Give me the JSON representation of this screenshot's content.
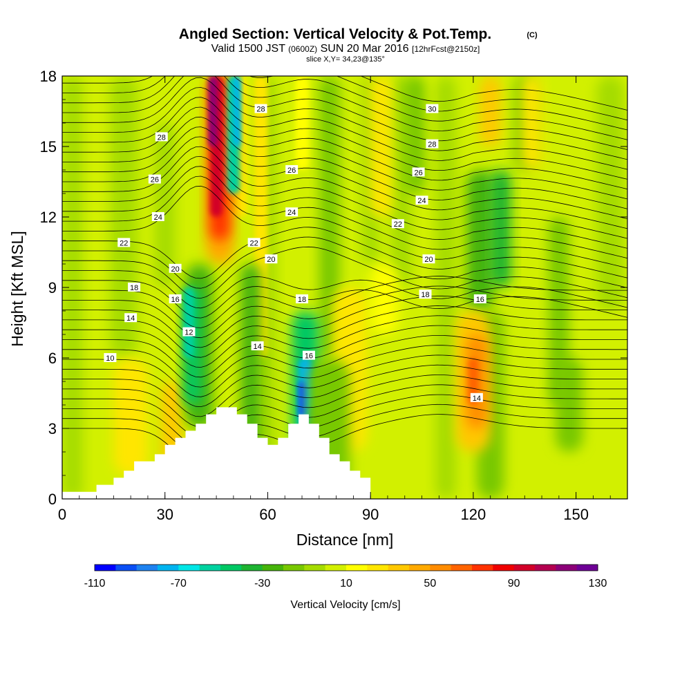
{
  "chart_data": {
    "type": "heatmap",
    "title": "Angled Section: Vertical Velocity & Pot.Temp.",
    "title_mark": "(C)",
    "subtitle_parts": [
      "Valid 1500 JST",
      "(0600Z)",
      "SUN 20 Mar 2016",
      "[12hrFcst@2150z]"
    ],
    "subtitle2": "slice X,Y= 34,23@135°",
    "xlabel": "Distance [nm]",
    "ylabel": "Height [Kft MSL]",
    "xlim": [
      0,
      165
    ],
    "ylim": [
      0,
      18
    ],
    "x_ticks": [
      0,
      30,
      60,
      90,
      120,
      150
    ],
    "y_ticks": [
      0,
      3,
      6,
      9,
      12,
      15,
      18
    ],
    "colorbar": {
      "label": "Vertical Velocity [cm/s]",
      "min": -110,
      "max": 130,
      "step": 10,
      "tick_values": [
        -110,
        -70,
        -30,
        10,
        50,
        90,
        130
      ],
      "colors": [
        "#0000ff",
        "#0a4ff5",
        "#1e82f0",
        "#00b4f0",
        "#00e6e6",
        "#00d2a0",
        "#00c864",
        "#1eb432",
        "#46b40a",
        "#78c800",
        "#a5dc00",
        "#d2f000",
        "#ffff00",
        "#ffe600",
        "#ffc800",
        "#ffaa00",
        "#ff8c00",
        "#ff6400",
        "#ff3200",
        "#f00000",
        "#d20028",
        "#b40050",
        "#8c0078",
        "#6e0096"
      ]
    },
    "vertical_velocity_features": [
      {
        "label": "updraft",
        "x": 45,
        "y_bottom": 10,
        "y_top": 18,
        "value": 110
      },
      {
        "label": "downdraft",
        "x": 50,
        "y_bottom": 13,
        "y_top": 18,
        "value": -70
      },
      {
        "label": "downdraft",
        "x": 38,
        "y_bottom": 4,
        "y_top": 10,
        "value": -40
      },
      {
        "label": "downdraft",
        "x": 71,
        "y_bottom": 2,
        "y_top": 8,
        "value": -90
      },
      {
        "label": "updraft",
        "x": 120,
        "y_bottom": 2,
        "y_top": 8,
        "value": 50
      },
      {
        "label": "downdraft",
        "x": 128,
        "y_bottom": 9,
        "y_top": 14,
        "value": -30
      }
    ],
    "terrain": [
      [
        0,
        0
      ],
      [
        0,
        0.3
      ],
      [
        10,
        0.3
      ],
      [
        10,
        0.6
      ],
      [
        15,
        0.6
      ],
      [
        15,
        0.9
      ],
      [
        18,
        0.9
      ],
      [
        18,
        1.2
      ],
      [
        21,
        1.2
      ],
      [
        21,
        1.6
      ],
      [
        27,
        1.6
      ],
      [
        27,
        1.9
      ],
      [
        30,
        1.9
      ],
      [
        30,
        2.3
      ],
      [
        33,
        2.3
      ],
      [
        33,
        2.6
      ],
      [
        36,
        2.6
      ],
      [
        36,
        2.9
      ],
      [
        39,
        2.9
      ],
      [
        39,
        3.2
      ],
      [
        42,
        3.2
      ],
      [
        42,
        3.6
      ],
      [
        45,
        3.6
      ],
      [
        45,
        3.9
      ],
      [
        51,
        3.9
      ],
      [
        51,
        3.6
      ],
      [
        54,
        3.6
      ],
      [
        54,
        3.2
      ],
      [
        57,
        3.2
      ],
      [
        57,
        2.6
      ],
      [
        60,
        2.6
      ],
      [
        60,
        2.3
      ],
      [
        63,
        2.3
      ],
      [
        63,
        2.6
      ],
      [
        66,
        2.6
      ],
      [
        66,
        3.2
      ],
      [
        69,
        3.2
      ],
      [
        69,
        3.6
      ],
      [
        72,
        3.6
      ],
      [
        72,
        3.2
      ],
      [
        75,
        3.2
      ],
      [
        75,
        2.6
      ],
      [
        78,
        2.6
      ],
      [
        78,
        1.9
      ],
      [
        81,
        1.9
      ],
      [
        81,
        1.6
      ],
      [
        84,
        1.6
      ],
      [
        84,
        1.2
      ],
      [
        87,
        1.2
      ],
      [
        87,
        0.9
      ],
      [
        90,
        0.9
      ],
      [
        90,
        0
      ],
      [
        165,
        0
      ]
    ],
    "theta_labels": [
      {
        "text": "10",
        "x": 14,
        "y": 6.0
      },
      {
        "text": "12",
        "x": 37,
        "y": 7.1
      },
      {
        "text": "14",
        "x": 20,
        "y": 7.7
      },
      {
        "text": "14",
        "x": 57,
        "y": 6.5
      },
      {
        "text": "14",
        "x": 121,
        "y": 4.3
      },
      {
        "text": "16",
        "x": 33,
        "y": 8.5
      },
      {
        "text": "16",
        "x": 72,
        "y": 6.1
      },
      {
        "text": "16",
        "x": 122,
        "y": 8.5
      },
      {
        "text": "18",
        "x": 21,
        "y": 9.0
      },
      {
        "text": "18",
        "x": 70,
        "y": 8.5
      },
      {
        "text": "18",
        "x": 106,
        "y": 8.7
      },
      {
        "text": "20",
        "x": 33,
        "y": 9.8
      },
      {
        "text": "20",
        "x": 61,
        "y": 10.2
      },
      {
        "text": "20",
        "x": 107,
        "y": 10.2
      },
      {
        "text": "22",
        "x": 18,
        "y": 10.9
      },
      {
        "text": "22",
        "x": 56,
        "y": 10.9
      },
      {
        "text": "22",
        "x": 98,
        "y": 11.7
      },
      {
        "text": "24",
        "x": 28,
        "y": 12.0
      },
      {
        "text": "24",
        "x": 67,
        "y": 12.2
      },
      {
        "text": "24",
        "x": 105,
        "y": 12.7
      },
      {
        "text": "26",
        "x": 27,
        "y": 13.6
      },
      {
        "text": "26",
        "x": 67,
        "y": 14.0
      },
      {
        "text": "26",
        "x": 104,
        "y": 13.9
      },
      {
        "text": "28",
        "x": 29,
        "y": 15.4
      },
      {
        "text": "28",
        "x": 58,
        "y": 16.6
      },
      {
        "text": "28",
        "x": 108,
        "y": 15.1
      },
      {
        "text": "30",
        "x": 108,
        "y": 16.6
      }
    ]
  }
}
